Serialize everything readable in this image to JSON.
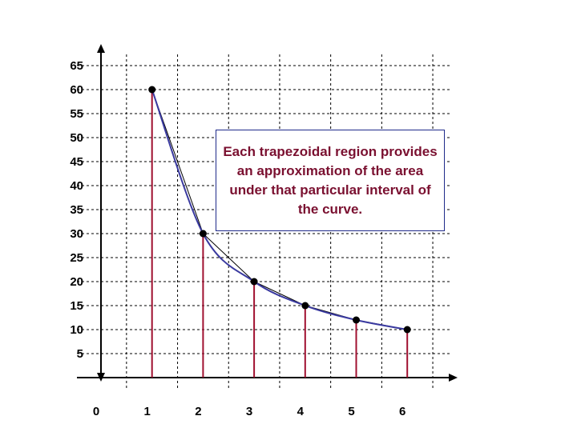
{
  "chart_data": {
    "type": "line",
    "title": "",
    "xlabel": "",
    "ylabel": "",
    "x_ticks": [
      "0",
      "1",
      "2",
      "3",
      "4",
      "5",
      "6"
    ],
    "y_ticks": [
      "5",
      "10",
      "15",
      "20",
      "25",
      "30",
      "35",
      "40",
      "45",
      "50",
      "55",
      "60",
      "65"
    ],
    "xlim": [
      0,
      7
    ],
    "ylim": [
      0,
      65
    ],
    "grid": true,
    "series": [
      {
        "x": [
          1,
          2,
          3,
          4,
          5,
          6
        ],
        "values": [
          60,
          30,
          20,
          15,
          12,
          10
        ]
      }
    ],
    "annotation": "Each trapezoidal region provides an approximation of the area under that particular interval of the curve.",
    "colors": {
      "curve": "#3a3aa0",
      "chord": "#000000",
      "vertical": "#a01030",
      "point": "#000000",
      "annotation_text": "#7a1030"
    }
  }
}
